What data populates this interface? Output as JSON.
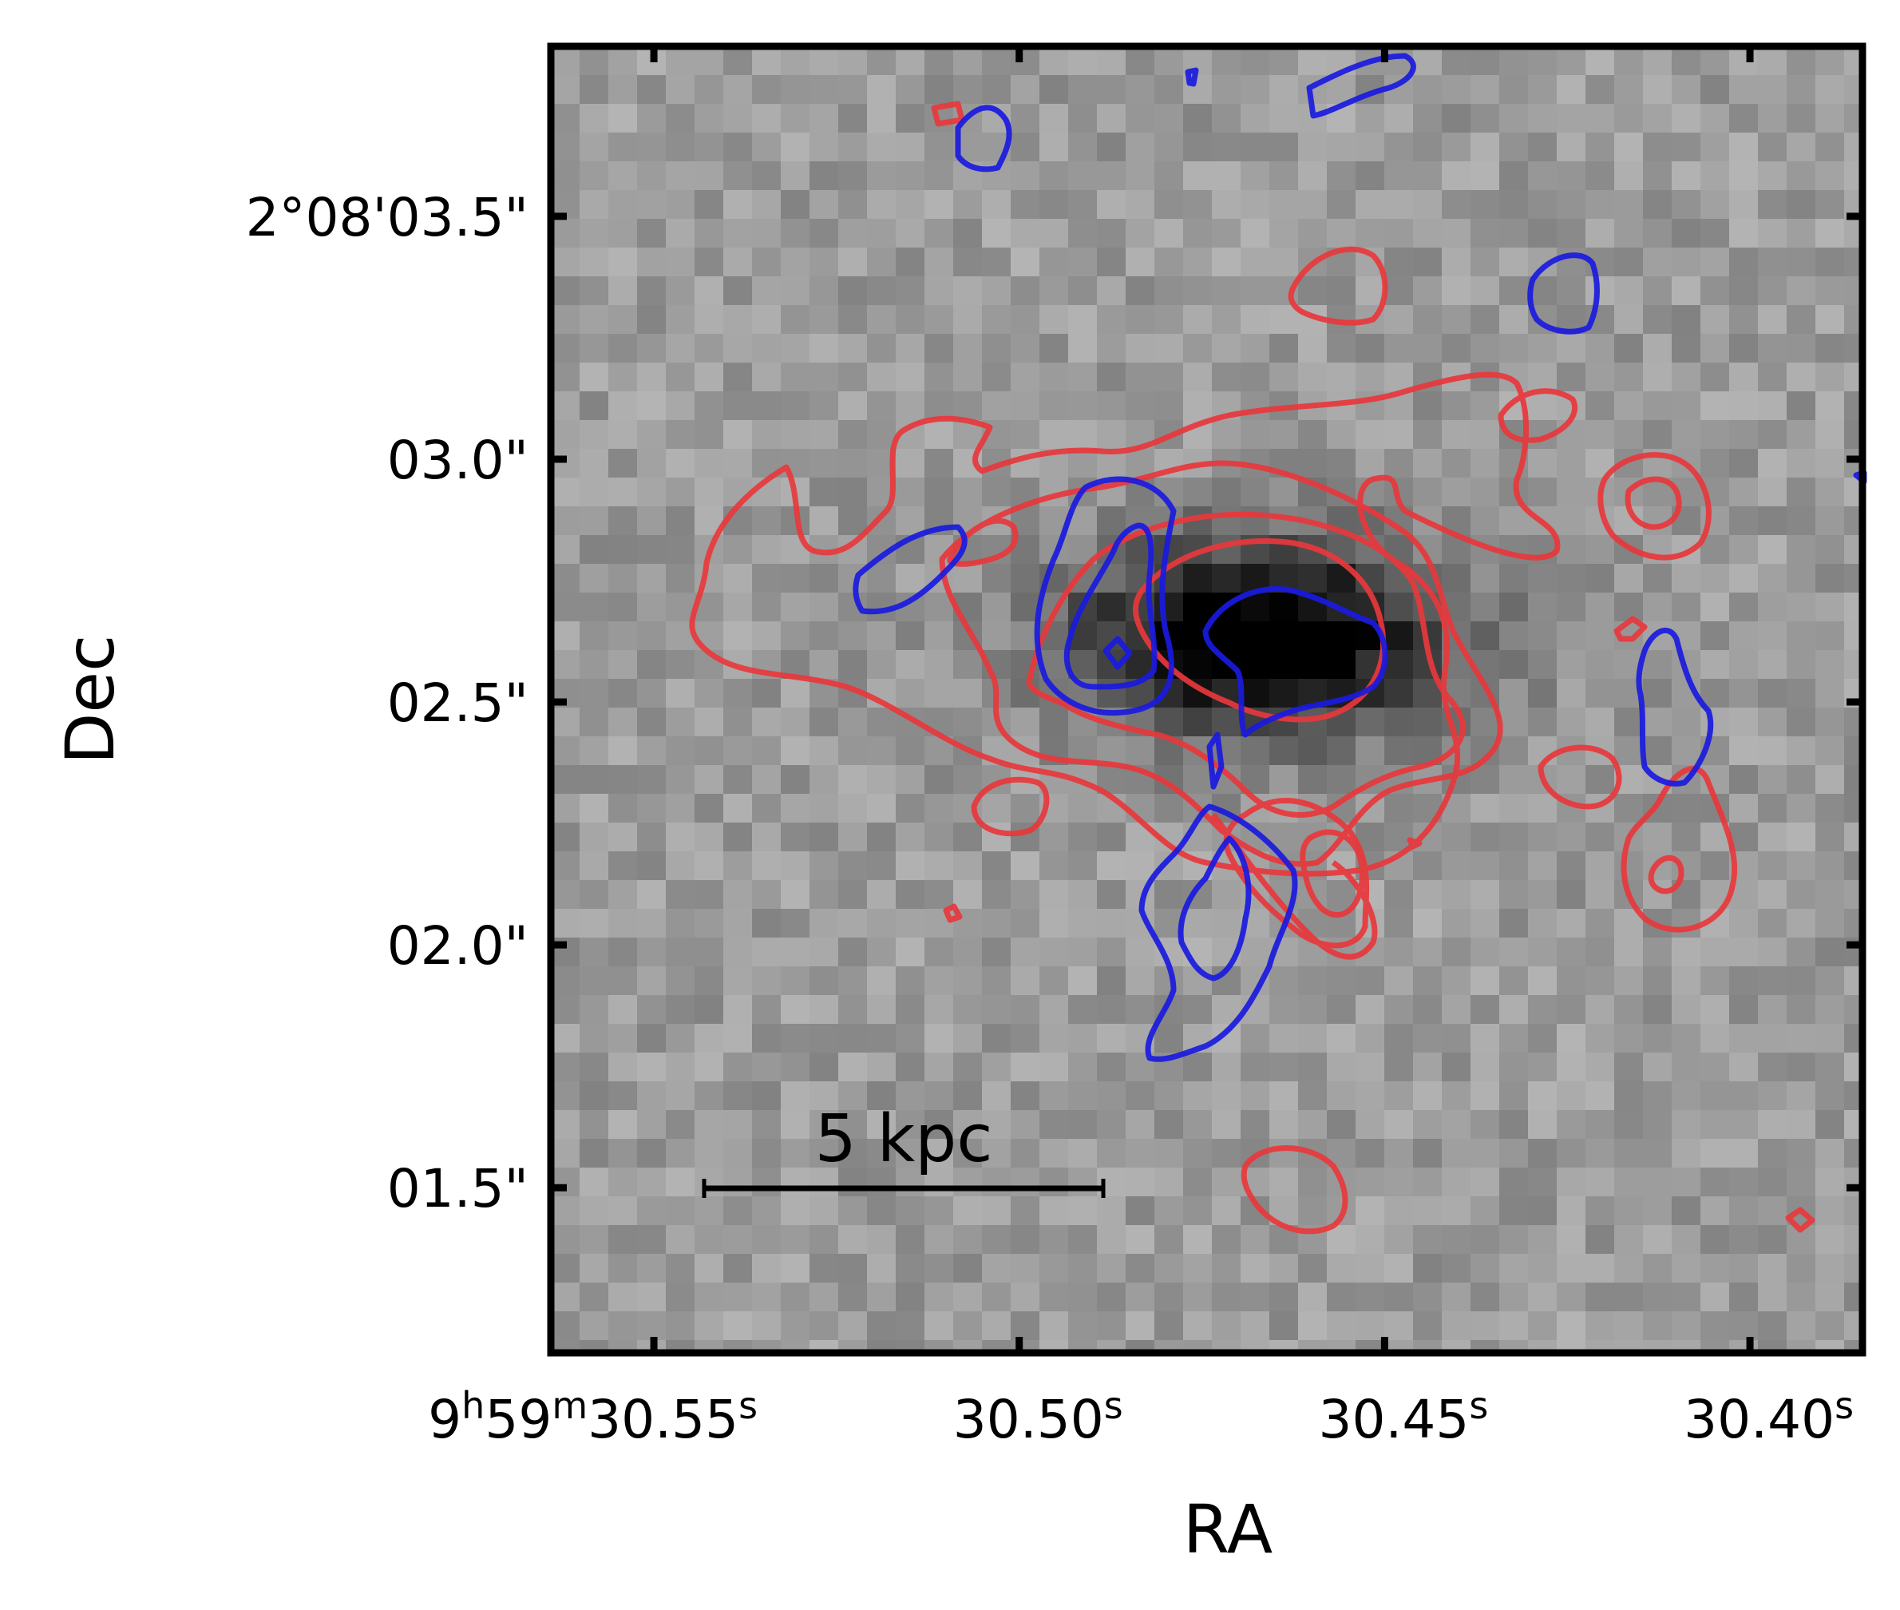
{
  "chart_data": {
    "type": "heatmap",
    "description_type": "image with contour overlay",
    "xlabel": "RA",
    "ylabel": "Dec",
    "x_ticks": [
      {
        "value": 30.55,
        "h": "9",
        "m": "59",
        "s": "30.55"
      },
      {
        "value": 30.5,
        "h": "",
        "m": "",
        "s": "30.50"
      },
      {
        "value": 30.45,
        "h": "",
        "m": "",
        "s": "30.45"
      },
      {
        "value": 30.4,
        "h": "",
        "m": "",
        "s": "30.40"
      }
    ],
    "y_ticks": [
      {
        "value": 3.5,
        "label": "2°08'03.5\""
      },
      {
        "value": 3.0,
        "label": "03.0\""
      },
      {
        "value": 2.5,
        "label": "02.5\""
      },
      {
        "value": 2.0,
        "label": "02.0\""
      },
      {
        "value": 1.5,
        "label": "01.5\""
      }
    ],
    "xlim": [
      30.5641,
      30.3846
    ],
    "ylim": [
      1.16,
      3.85
    ],
    "xlabel_sup_h": "h",
    "xlabel_sup_m": "m",
    "xlabel_sup_s": "s",
    "scale_bar": {
      "label": "5 kpc"
    },
    "colors": {
      "red_contours": "#e8383c",
      "blue_contours": "#1a1ae0",
      "frame": "#000000"
    },
    "grid": false,
    "background_image": "grayscale pixelated map with a dark source near center"
  }
}
